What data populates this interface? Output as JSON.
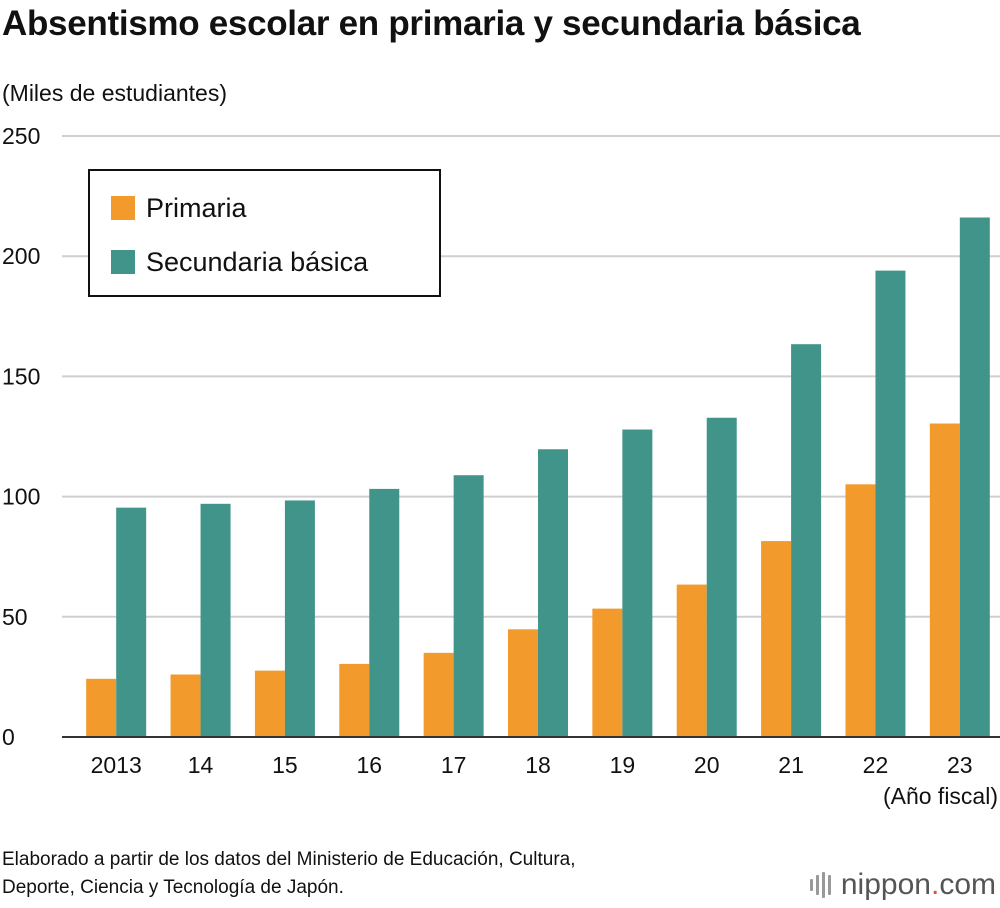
{
  "title": "Absentismo escolar en primaria y secundaria básica",
  "unit_label": "(Miles de estudiantes)",
  "source": {
    "line1": "Elaborado a partir de los datos del Ministerio de Educación, Cultura,",
    "line2": "Deporte, Ciencia y Tecnología de Japón."
  },
  "logo": {
    "name": "nippon",
    "dot": ".",
    "suffix": "com"
  },
  "colors": {
    "primaria": "#f29a2b",
    "secundaria": "#41948a",
    "grid": "#cfcfcf",
    "axis": "#333333"
  },
  "chart_data": {
    "type": "bar",
    "categories": [
      "2013",
      "14",
      "15",
      "16",
      "17",
      "18",
      "19",
      "20",
      "21",
      "22",
      "23"
    ],
    "xlabel": "(Año fiscal)",
    "ylabel": "(Miles de estudiantes)",
    "ylim": [
      0,
      250
    ],
    "yticks": [
      0,
      50,
      100,
      150,
      200,
      250
    ],
    "grid": true,
    "legend_position": "top-left",
    "series": [
      {
        "name": "Primaria",
        "color": "#f29a2b",
        "values": [
          24.2,
          26.0,
          27.6,
          30.4,
          35.0,
          44.8,
          53.4,
          63.4,
          81.5,
          105.1,
          130.4
        ]
      },
      {
        "name": "Secundaria básica",
        "color": "#41948a",
        "values": [
          95.4,
          97.0,
          98.4,
          103.2,
          108.9,
          119.7,
          127.9,
          132.8,
          163.4,
          194.0,
          216.1
        ]
      }
    ]
  }
}
